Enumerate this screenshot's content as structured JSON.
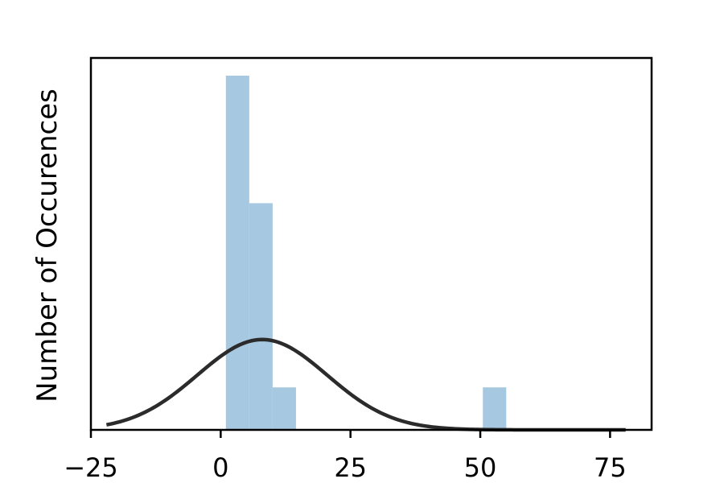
{
  "chart_data": {
    "type": "bar",
    "subtype": "histogram-with-density-curve",
    "ylabel": "Number of Occurences",
    "xlabel": "",
    "xlim": [
      -25,
      83
    ],
    "xticks": [
      -25,
      0,
      25,
      50,
      75
    ],
    "xtick_labels": [
      "−25",
      "0",
      "25",
      "50",
      "75"
    ],
    "yticks_shown": false,
    "grid": false,
    "legend": "none",
    "histogram": {
      "color": "#a6c8e0",
      "bins": [
        {
          "x0": 1.0,
          "x1": 5.5,
          "relative_height": 1.0
        },
        {
          "x0": 5.5,
          "x1": 10.0,
          "relative_height": 0.64
        },
        {
          "x0": 10.0,
          "x1": 14.5,
          "relative_height": 0.12
        },
        {
          "x0": 50.5,
          "x1": 55.0,
          "relative_height": 0.12
        }
      ]
    },
    "density_curve": {
      "color": "#2b2b2b",
      "distribution": "normal",
      "mean": 8,
      "std": 12.5,
      "x_range": [
        -22,
        78
      ],
      "peak_relative_height": 0.255
    }
  }
}
